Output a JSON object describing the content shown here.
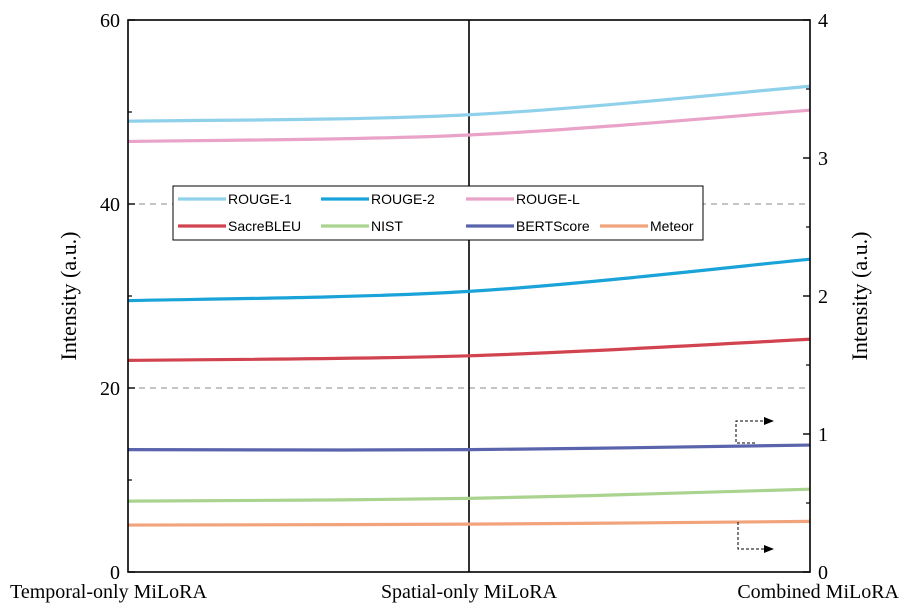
{
  "chart_data": {
    "type": "line",
    "categories": [
      "Temporal-only MiLoRA",
      "Spatial-only MiLoRA",
      "Combined MiLoRA"
    ],
    "y_left": {
      "label": "Intensity (a.u.)",
      "lim": [
        0,
        60
      ],
      "ticks": [
        0,
        20,
        40,
        60
      ]
    },
    "y_right": {
      "label": "Intensity (a.u.)",
      "lim": [
        0,
        4
      ],
      "ticks": [
        0,
        1,
        2,
        3,
        4
      ]
    },
    "grid": {
      "horizontal_dashed_at_left": [
        20,
        40
      ]
    },
    "legend": {
      "placement": "upper-left-center",
      "columns": 3
    },
    "series": [
      {
        "name": "ROUGE-1",
        "axis": "left",
        "color": "#8fd0ea",
        "values": [
          49.0,
          49.7,
          52.8
        ]
      },
      {
        "name": "ROUGE-2",
        "axis": "left",
        "color": "#1aa3d9",
        "values": [
          29.5,
          30.5,
          34.0
        ]
      },
      {
        "name": "ROUGE-L",
        "axis": "left",
        "color": "#e9a2c8",
        "values": [
          46.8,
          47.5,
          50.2
        ]
      },
      {
        "name": "SacreBLEU",
        "axis": "left",
        "color": "#d1444f",
        "values": [
          23.0,
          23.5,
          25.3
        ]
      },
      {
        "name": "NIST",
        "axis": "left",
        "color": "#a9d38e",
        "values": [
          7.7,
          8.0,
          9.0
        ]
      },
      {
        "name": "BERTScore",
        "axis": "left",
        "color": "#5a64ac",
        "values": [
          13.3,
          13.3,
          13.8
        ]
      },
      {
        "name": "Meteor",
        "axis": "left",
        "color": "#f1a47c",
        "values": [
          5.1,
          5.2,
          5.5
        ]
      }
    ]
  }
}
